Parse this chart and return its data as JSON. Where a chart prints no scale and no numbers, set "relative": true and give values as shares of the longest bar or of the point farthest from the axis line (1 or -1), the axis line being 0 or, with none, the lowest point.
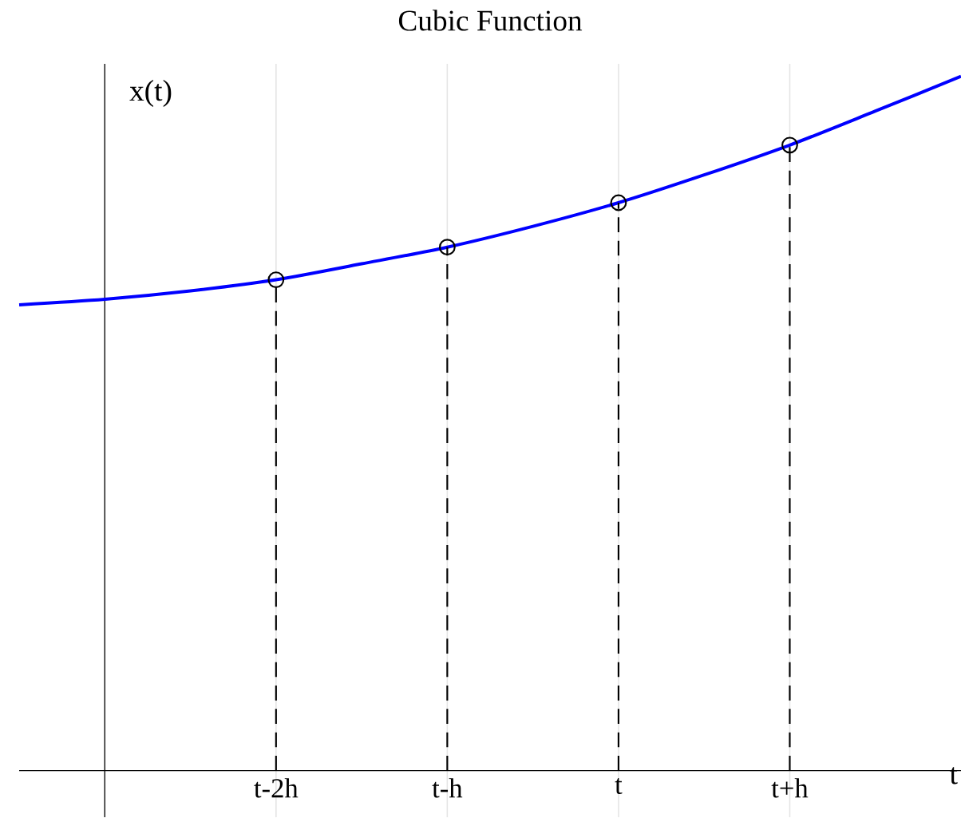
{
  "chart_data": {
    "type": "line",
    "title": "Cubic Function",
    "xlabel": "t",
    "ylabel": "x(t)",
    "relative": true,
    "grid": "x",
    "categories": [
      null,
      null,
      null,
      "t-2h",
      null,
      "t-h",
      null,
      "t",
      null,
      "t+h",
      null,
      null
    ],
    "series": [
      {
        "color": "#0000ff",
        "marker": "none",
        "line_style": "solid",
        "values": [
          0.671,
          0.679,
          0.691,
          0.707,
          0.73,
          0.754,
          0.784,
          0.818,
          0.858,
          0.901,
          0.95,
          1
        ]
      },
      {
        "type": "lollipop",
        "color": "#000000",
        "marker": "circle",
        "line_style": "dashed",
        "values": [
          null,
          null,
          null,
          0.707,
          null,
          0.754,
          null,
          0.818,
          null,
          0.901,
          null,
          null
        ]
      }
    ]
  }
}
